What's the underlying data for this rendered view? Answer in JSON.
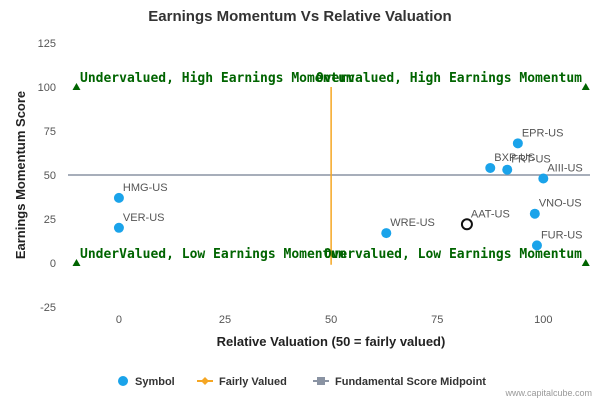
{
  "chart_data": {
    "type": "scatter",
    "title": "Earnings Momentum Vs Relative Valuation",
    "xlabel": "Relative Valuation (50 = fairly valued)",
    "ylabel": "Earnings Momentum Score",
    "xlim": [
      -12,
      111
    ],
    "ylim": [
      -25,
      125
    ],
    "x_ticks": [
      0,
      25,
      50,
      75,
      100
    ],
    "y_ticks": [
      -25,
      0,
      25,
      50,
      75,
      100,
      125
    ],
    "grid": false,
    "legend_position": "bottom",
    "colors": {
      "symbol": "#1aa3ea",
      "fairly_valued": "#f5a623",
      "midpoint": "#8a93a3",
      "highlight": "#111111",
      "quadrant": "#006400"
    },
    "series": [
      {
        "name": "Symbol",
        "points": [
          {
            "label": "EPR-US",
            "x": 94,
            "y": 68
          },
          {
            "label": "BXP-US",
            "x": 87.5,
            "y": 54
          },
          {
            "label": "FRT-US",
            "x": 91.5,
            "y": 53
          },
          {
            "label": "AIII-US",
            "x": 100,
            "y": 48
          },
          {
            "label": "VNO-US",
            "x": 98,
            "y": 28
          },
          {
            "label": "FUR-US",
            "x": 98.5,
            "y": 10
          },
          {
            "label": "WRE-US",
            "x": 63,
            "y": 17
          },
          {
            "label": "HMG-US",
            "x": 0,
            "y": 37
          },
          {
            "label": "VER-US",
            "x": 0,
            "y": 20
          }
        ]
      },
      {
        "name": "Fairly Valued",
        "x": [
          50,
          50
        ],
        "y": [
          -1,
          100
        ]
      },
      {
        "name": "Fundamental Score Midpoint",
        "x": [
          -12,
          111
        ],
        "y": [
          50,
          50
        ]
      }
    ],
    "highlight_point": {
      "label": "AAT-US",
      "x": 82,
      "y": 22
    },
    "quadrant_markers": [
      {
        "x": -10,
        "y": 100
      },
      {
        "x": 110,
        "y": 100
      },
      {
        "x": -10,
        "y": 0
      },
      {
        "x": 110,
        "y": 0
      }
    ],
    "annotations": [
      {
        "text": "Undervalued, High Earnings Momentum",
        "anchor": "left",
        "y": 100
      },
      {
        "text": "Overvalued, High Earnings Momentum",
        "anchor": "right",
        "y": 100
      },
      {
        "text": "UnderValued, Low Earnings Momentum",
        "anchor": "left",
        "y": 0
      },
      {
        "text": "Overvalued, Low Earnings Momentum",
        "anchor": "right",
        "y": 0
      }
    ]
  },
  "legend": {
    "symbol": "Symbol",
    "fairly_valued": "Fairly Valued",
    "midpoint": "Fundamental Score Midpoint"
  },
  "credit": "www.capitalcube.com"
}
